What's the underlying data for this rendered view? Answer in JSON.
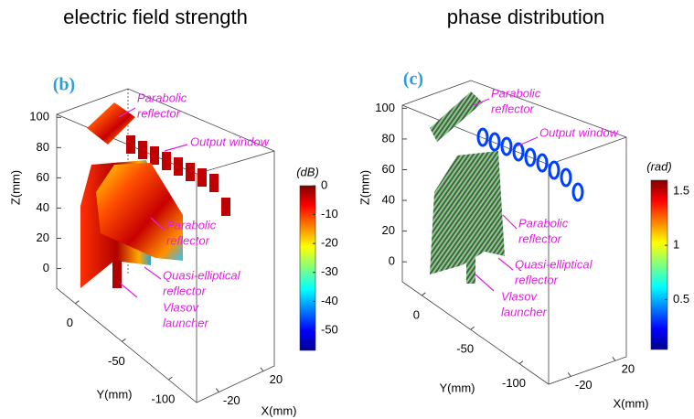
{
  "chart_data": [
    {
      "type": "surface3d",
      "title": "electric field strength",
      "panel_label": "(b)",
      "xlabel": "X(mm)",
      "ylabel": "Y(mm)",
      "zlabel": "Z(mm)",
      "xlim": [
        -40,
        30
      ],
      "xticks": [
        -20,
        20
      ],
      "ylim": [
        20,
        -130
      ],
      "yticks": [
        0,
        -50,
        -100
      ],
      "zlim": [
        -13,
        102
      ],
      "zticks": [
        0,
        20,
        40,
        60,
        80,
        100
      ],
      "colorbar_label": "(dB)",
      "clim": [
        -57,
        0
      ],
      "cticks": [
        0,
        -10,
        -20,
        -30,
        -40,
        -50
      ],
      "annotations": [
        [
          "Parabolic",
          "reflector"
        ],
        [
          "Output window"
        ],
        [
          "Parabolic",
          "reflector"
        ],
        [
          "Quasi-elliptical",
          "reflector"
        ],
        [
          "Vlasov",
          "launcher"
        ]
      ]
    },
    {
      "type": "surface3d",
      "title": "phase distribution",
      "panel_label": "(c)",
      "xlabel": "X(mm)",
      "ylabel": "Y(mm)",
      "zlabel": "Z(mm)",
      "xlim": [
        -40,
        30
      ],
      "xticks": [
        -20,
        20
      ],
      "ylim": [
        20,
        -130
      ],
      "yticks": [
        0,
        -50,
        -100
      ],
      "zlim": [
        -13,
        102
      ],
      "zticks": [
        0,
        20,
        40,
        60,
        80,
        100
      ],
      "colorbar_label": "(rad)",
      "clim": [
        0.04,
        1.6
      ],
      "cticks": [
        1.5,
        1,
        0.5
      ],
      "annotations": [
        [
          "Parabolic",
          "reflector"
        ],
        [
          "Output window"
        ],
        [
          "Parabolic",
          "reflector"
        ],
        [
          "Quasi-elliptical",
          "reflector"
        ],
        [
          "Vlasov",
          "launcher"
        ]
      ]
    }
  ]
}
